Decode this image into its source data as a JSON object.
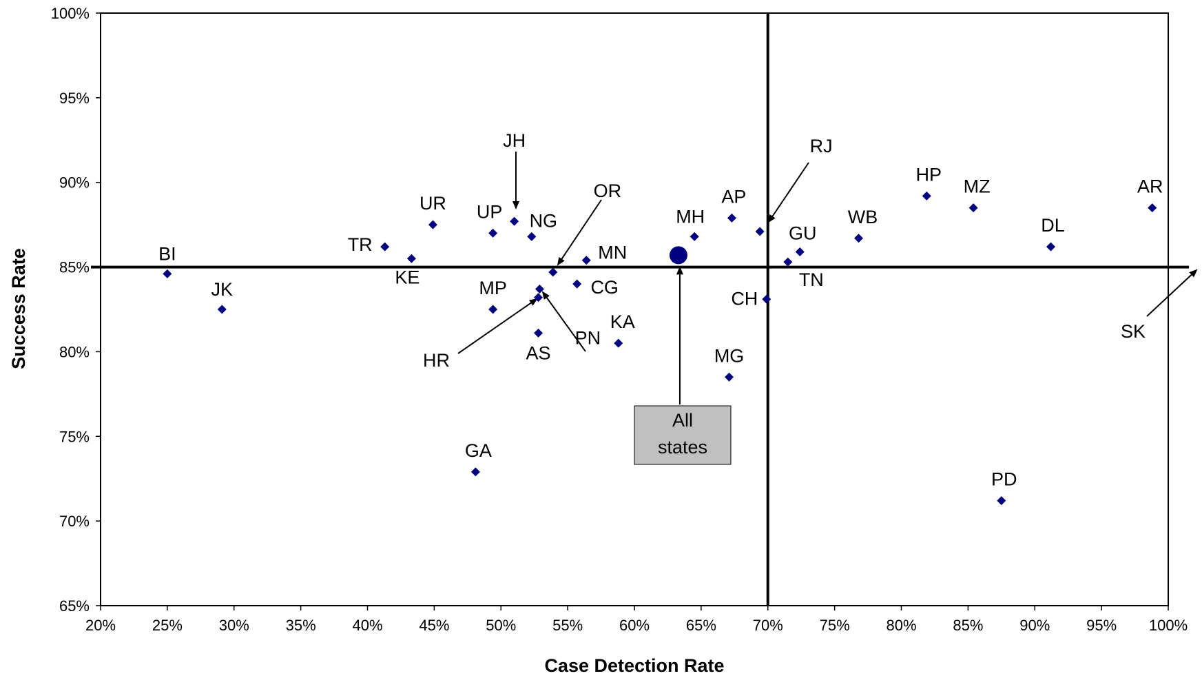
{
  "chart_data": {
    "type": "scatter",
    "xlabel": "Case Detection Rate",
    "ylabel": "Success Rate",
    "xlim": [
      20,
      100
    ],
    "ylim": [
      65,
      100
    ],
    "x_ticks": [
      "20%",
      "25%",
      "30%",
      "35%",
      "40%",
      "45%",
      "50%",
      "55%",
      "60%",
      "65%",
      "70%",
      "75%",
      "80%",
      "85%",
      "90%",
      "95%",
      "100%"
    ],
    "y_ticks": [
      "65%",
      "70%",
      "75%",
      "80%",
      "85%",
      "90%",
      "95%",
      "100%"
    ],
    "grid": false,
    "reference_lines": {
      "x": 70,
      "y": 85
    },
    "marker_color": "#000080",
    "points": [
      {
        "label": "BI",
        "x": 25.0,
        "y": 84.6
      },
      {
        "label": "JK",
        "x": 29.1,
        "y": 82.5
      },
      {
        "label": "TR",
        "x": 41.3,
        "y": 86.2
      },
      {
        "label": "KE",
        "x": 43.3,
        "y": 85.5
      },
      {
        "label": "UR",
        "x": 44.9,
        "y": 87.5
      },
      {
        "label": "GA",
        "x": 48.1,
        "y": 72.9
      },
      {
        "label": "MP",
        "x": 49.4,
        "y": 82.5
      },
      {
        "label": "UP",
        "x": 49.4,
        "y": 87.0
      },
      {
        "label": "JH",
        "x": 51.0,
        "y": 87.7
      },
      {
        "label": "NG",
        "x": 52.3,
        "y": 86.8
      },
      {
        "label": "HR",
        "x": 52.8,
        "y": 83.2
      },
      {
        "label": "PN",
        "x": 52.9,
        "y": 83.7
      },
      {
        "label": "AS",
        "x": 52.8,
        "y": 81.1
      },
      {
        "label": "OR",
        "x": 53.9,
        "y": 84.7
      },
      {
        "label": "CG",
        "x": 55.7,
        "y": 84.0
      },
      {
        "label": "MN",
        "x": 56.4,
        "y": 85.4
      },
      {
        "label": "KA",
        "x": 58.8,
        "y": 80.5
      },
      {
        "label": "MH",
        "x": 64.5,
        "y": 86.8
      },
      {
        "label": "MG",
        "x": 67.1,
        "y": 78.5
      },
      {
        "label": "AP",
        "x": 67.3,
        "y": 87.9
      },
      {
        "label": "RJ",
        "x": 69.4,
        "y": 87.1
      },
      {
        "label": "CH",
        "x": 69.9,
        "y": 83.1
      },
      {
        "label": "TN",
        "x": 71.5,
        "y": 85.3
      },
      {
        "label": "GU",
        "x": 72.4,
        "y": 85.9
      },
      {
        "label": "WB",
        "x": 76.8,
        "y": 86.7
      },
      {
        "label": "HP",
        "x": 81.9,
        "y": 89.2
      },
      {
        "label": "MZ",
        "x": 85.4,
        "y": 88.5
      },
      {
        "label": "PD",
        "x": 87.5,
        "y": 71.2
      },
      {
        "label": "DL",
        "x": 91.2,
        "y": 86.2
      },
      {
        "label": "AR",
        "x": 98.8,
        "y": 88.5
      },
      {
        "label": "SK",
        "x": null,
        "y": null
      }
    ],
    "summary_point": {
      "label": "All states",
      "x": 63.3,
      "y": 85.7
    }
  },
  "callout": {
    "line1": "All",
    "line2": "states"
  },
  "colors": {
    "marker": "#000080",
    "callout_fill": "#c0c0c0",
    "line": "#000000"
  }
}
